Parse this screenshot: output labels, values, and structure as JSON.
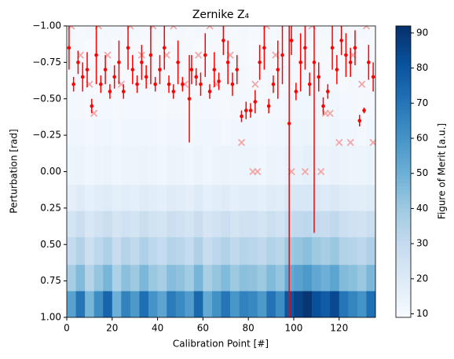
{
  "chart_data": {
    "type": "heatmap",
    "title": "Zernike Z₄",
    "x_label": "Calibration Point [#]",
    "y_label": "Perturbation [rad]",
    "xlim": [
      0,
      136
    ],
    "ylim": [
      -1,
      1
    ],
    "y_inverted": true,
    "xticks": [
      0,
      20,
      40,
      60,
      80,
      100,
      120
    ],
    "yticks": [
      {
        "value": -1,
        "label": "−1.00"
      },
      {
        "value": -0.75,
        "label": "−0.75"
      },
      {
        "value": -0.5,
        "label": "−0.50"
      },
      {
        "value": -0.25,
        "label": "−0.25"
      },
      {
        "value": 0,
        "label": "0.00"
      },
      {
        "value": 0.25,
        "label": "0.25"
      },
      {
        "value": 0.5,
        "label": "0.50"
      },
      {
        "value": 0.75,
        "label": "0.75"
      },
      {
        "value": 1,
        "label": "1.00"
      }
    ],
    "x_edges": [
      0,
      4,
      8,
      12,
      16,
      20,
      24,
      28,
      32,
      36,
      40,
      44,
      48,
      52,
      56,
      60,
      64,
      68,
      72,
      76,
      80,
      84,
      88,
      92,
      96,
      100,
      104,
      108,
      112,
      116,
      120,
      124,
      128,
      132,
      136
    ],
    "y_edges": [
      -1,
      -0.91,
      -0.73,
      -0.55,
      -0.36,
      -0.18,
      0.09,
      0.27,
      0.45,
      0.64,
      0.82,
      1
    ],
    "colormap": "Blues",
    "z": [
      [
        11,
        10,
        11,
        10,
        11,
        11,
        10,
        11,
        10,
        11,
        11,
        10,
        11,
        10,
        11,
        10,
        11,
        11,
        10,
        11,
        10,
        11,
        10,
        11,
        11,
        12,
        12,
        11,
        11,
        12,
        11,
        10,
        11,
        10
      ],
      [
        10,
        10,
        9,
        10,
        10,
        9,
        10,
        10,
        9,
        10,
        10,
        9,
        10,
        10,
        9,
        10,
        10,
        9,
        10,
        10,
        9,
        10,
        10,
        9,
        10,
        11,
        11,
        10,
        10,
        11,
        10,
        10,
        9,
        10
      ],
      [
        10,
        11,
        10,
        10,
        11,
        10,
        10,
        11,
        10,
        10,
        11,
        10,
        10,
        11,
        10,
        10,
        11,
        10,
        10,
        11,
        10,
        10,
        11,
        10,
        11,
        11,
        11,
        11,
        10,
        11,
        10,
        11,
        10,
        10
      ],
      [
        11,
        11,
        10,
        11,
        11,
        10,
        11,
        11,
        11,
        11,
        10,
        11,
        11,
        10,
        11,
        11,
        11,
        10,
        11,
        11,
        11,
        10,
        11,
        11,
        12,
        12,
        12,
        12,
        11,
        12,
        11,
        11,
        10,
        11
      ],
      [
        12,
        12,
        11,
        12,
        12,
        11,
        12,
        12,
        12,
        12,
        11,
        12,
        12,
        11,
        12,
        12,
        12,
        11,
        12,
        12,
        12,
        11,
        12,
        12,
        13,
        13,
        14,
        13,
        12,
        13,
        12,
        12,
        11,
        12
      ],
      [
        13,
        14,
        12,
        13,
        14,
        12,
        13,
        13,
        14,
        13,
        12,
        14,
        13,
        12,
        14,
        12,
        13,
        14,
        13,
        13,
        13,
        12,
        14,
        13,
        15,
        15,
        16,
        15,
        14,
        15,
        14,
        13,
        13,
        14
      ],
      [
        17,
        19,
        16,
        18,
        19,
        17,
        18,
        17,
        19,
        18,
        17,
        19,
        18,
        17,
        20,
        16,
        18,
        19,
        17,
        18,
        18,
        17,
        19,
        18,
        21,
        22,
        22,
        21,
        20,
        21,
        19,
        18,
        18,
        19
      ],
      [
        24,
        27,
        22,
        25,
        28,
        23,
        26,
        24,
        28,
        25,
        24,
        27,
        26,
        24,
        28,
        23,
        25,
        27,
        24,
        26,
        26,
        24,
        27,
        25,
        30,
        31,
        32,
        30,
        29,
        31,
        27,
        26,
        25,
        28
      ],
      [
        30,
        35,
        27,
        32,
        36,
        29,
        34,
        31,
        36,
        32,
        30,
        34,
        33,
        30,
        36,
        29,
        32,
        35,
        31,
        34,
        33,
        31,
        35,
        33,
        40,
        42,
        44,
        40,
        38,
        41,
        35,
        34,
        32,
        36
      ],
      [
        38,
        46,
        34,
        42,
        48,
        36,
        44,
        40,
        47,
        41,
        38,
        45,
        43,
        39,
        48,
        37,
        42,
        46,
        40,
        44,
        43,
        40,
        46,
        42,
        52,
        55,
        58,
        53,
        50,
        54,
        46,
        44,
        41,
        47
      ],
      [
        55,
        70,
        48,
        62,
        75,
        50,
        66,
        58,
        72,
        60,
        54,
        68,
        63,
        57,
        74,
        52,
        61,
        70,
        59,
        66,
        64,
        58,
        71,
        62,
        80,
        86,
        90,
        82,
        78,
        84,
        70,
        65,
        60,
        72
      ]
    ],
    "colorbar": {
      "label": "Figure of Merit [a.u.]",
      "lim": [
        9,
        92
      ],
      "ticks": [
        10,
        20,
        30,
        40,
        50,
        60,
        70,
        80,
        90
      ]
    },
    "points": {
      "color": "#ff0000",
      "x": [
        1,
        3,
        5,
        7,
        9,
        11,
        13,
        15,
        17,
        19,
        21,
        23,
        25,
        27,
        29,
        31,
        33,
        35,
        37,
        39,
        41,
        43,
        45,
        47,
        49,
        51,
        54,
        55,
        57,
        59,
        61,
        63,
        65,
        67,
        69,
        71,
        73,
        75,
        77,
        79,
        81,
        83,
        85,
        87,
        89,
        91,
        93,
        95,
        98,
        99,
        101,
        103,
        105,
        107,
        109,
        111,
        113,
        115,
        117,
        119,
        121,
        123,
        125,
        127,
        129,
        131,
        133,
        135
      ],
      "y": [
        -0.85,
        -0.6,
        -0.75,
        -0.65,
        -0.7,
        -0.45,
        -0.8,
        -0.6,
        -0.7,
        -0.55,
        -0.65,
        -0.75,
        -0.55,
        -0.85,
        -0.7,
        -0.6,
        -0.75,
        -0.65,
        -0.8,
        -0.6,
        -0.7,
        -0.85,
        -0.6,
        -0.55,
        -0.75,
        -0.6,
        -0.5,
        -0.7,
        -0.65,
        -0.6,
        -0.8,
        -0.55,
        -0.7,
        -0.62,
        -0.9,
        -0.75,
        -0.6,
        -0.7,
        -0.38,
        -0.42,
        -0.42,
        -0.48,
        -0.75,
        -0.85,
        -0.45,
        -0.6,
        -0.7,
        -0.8,
        -0.33,
        -0.9,
        -0.55,
        -0.75,
        -0.85,
        -0.6,
        -0.75,
        -0.65,
        -0.45,
        -0.55,
        -0.85,
        -0.7,
        -0.9,
        -0.8,
        -0.75,
        -0.85,
        -0.35,
        -0.42,
        -0.75,
        -0.65
      ],
      "err": [
        0.15,
        0.05,
        0.08,
        0.1,
        0.12,
        0.05,
        0.2,
        0.06,
        0.1,
        0.05,
        0.08,
        0.15,
        0.05,
        0.15,
        0.1,
        0.06,
        0.12,
        0.08,
        0.2,
        0.05,
        0.1,
        0.15,
        0.06,
        0.05,
        0.15,
        0.05,
        0.3,
        0.1,
        0.06,
        0.08,
        0.15,
        0.05,
        0.12,
        0.06,
        0.1,
        0.15,
        0.08,
        0.1,
        0.04,
        0.06,
        0.05,
        0.08,
        0.12,
        0.15,
        0.05,
        0.06,
        0.2,
        0.2,
        1.33,
        0.1,
        0.06,
        0.2,
        0.15,
        0.08,
        1.17,
        0.1,
        0.06,
        0.05,
        0.15,
        0.1,
        0.1,
        0.15,
        0.1,
        0.12,
        0.04,
        0.02,
        0.12,
        0.1
      ]
    },
    "crosses": {
      "color": "#f4a6a6",
      "x": [
        2,
        6,
        10,
        12,
        14,
        18,
        24,
        28,
        33,
        38,
        44,
        47,
        52,
        58,
        63,
        66,
        72,
        77,
        82,
        84,
        83,
        88,
        92,
        99,
        105,
        112,
        108,
        114,
        116,
        120,
        125,
        130,
        135,
        126,
        132
      ],
      "y": [
        -1,
        -0.8,
        -0.6,
        -0.4,
        -1,
        -0.8,
        -0.6,
        -1,
        -0.8,
        -1,
        -0.8,
        -1,
        -0.6,
        -0.8,
        -1,
        -0.6,
        -0.8,
        -0.2,
        0,
        0,
        -0.6,
        -1,
        -0.8,
        0,
        0,
        0,
        -1,
        -0.4,
        -0.4,
        -0.2,
        -0.2,
        -0.6,
        -0.2,
        -0.8,
        -1
      ]
    }
  }
}
